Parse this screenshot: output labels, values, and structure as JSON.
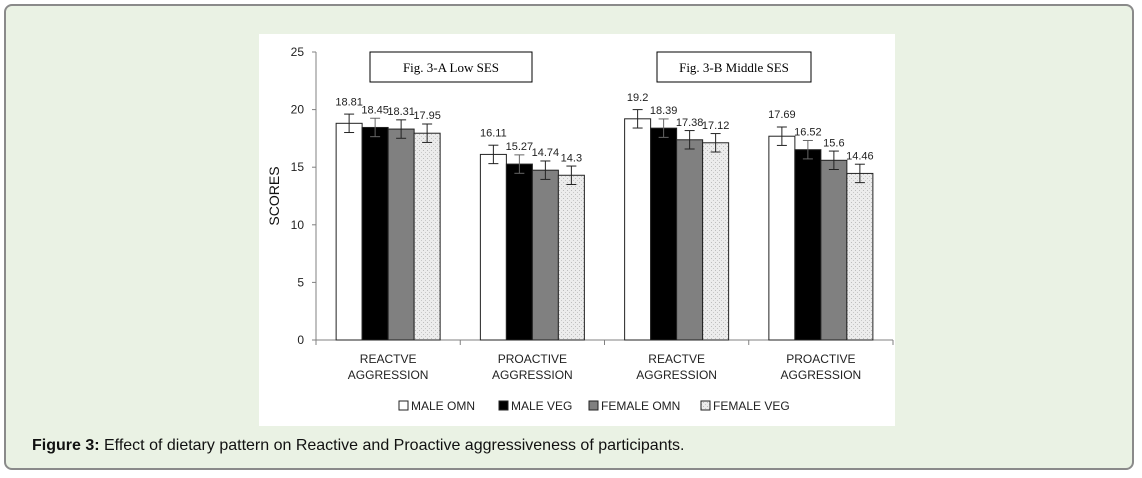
{
  "caption": {
    "label": "Figure 3:",
    "text": " Effect of dietary pattern on Reactive and Proactive aggressiveness of participants."
  },
  "colors": {
    "page_background": "#eaf2e4",
    "frame_border": "#8a8a8a",
    "chart_background": "#ffffff"
  },
  "chart_data": {
    "type": "bar",
    "ylabel": "SCORES",
    "xlabel": "",
    "ylim": [
      0,
      25
    ],
    "yticks": [
      0,
      5,
      10,
      15,
      20,
      25
    ],
    "grid": false,
    "legend_position": "bottom",
    "categories": [
      [
        "REACTVE",
        "AGGRESSION"
      ],
      [
        "PROACTIVE",
        "AGGRESSION"
      ],
      [
        "REACTVE",
        "AGGRESSION"
      ],
      [
        "PROACTIVE",
        "AGGRESSION"
      ]
    ],
    "panel_titles": [
      "Fig. 3-A Low SES",
      "Fig. 3-B Middle SES"
    ],
    "series": [
      {
        "name": "MALE OMN",
        "values": [
          18.81,
          16.11,
          19.2,
          17.69
        ],
        "color": "#ffffff"
      },
      {
        "name": "MALE VEG",
        "values": [
          18.45,
          15.27,
          18.39,
          16.52
        ],
        "color": "#000000"
      },
      {
        "name": "FEMALE OMN",
        "values": [
          18.31,
          14.74,
          17.38,
          15.6
        ],
        "color": "#808080"
      },
      {
        "name": "FEMALE VEG",
        "values": [
          17.95,
          14.3,
          17.12,
          14.46
        ],
        "color": "#e4e4e4"
      }
    ],
    "value_labels": [
      [
        "18.81",
        "16.11",
        "19.2",
        "17.69"
      ],
      [
        "18.45",
        "15.27",
        "18.39",
        "16.52"
      ],
      [
        "18.31",
        "14.74",
        "17.38",
        "15.6"
      ],
      [
        "17.95",
        "14.3",
        "17.12",
        "14.46"
      ]
    ],
    "error_bar_half_width": 0.8
  }
}
